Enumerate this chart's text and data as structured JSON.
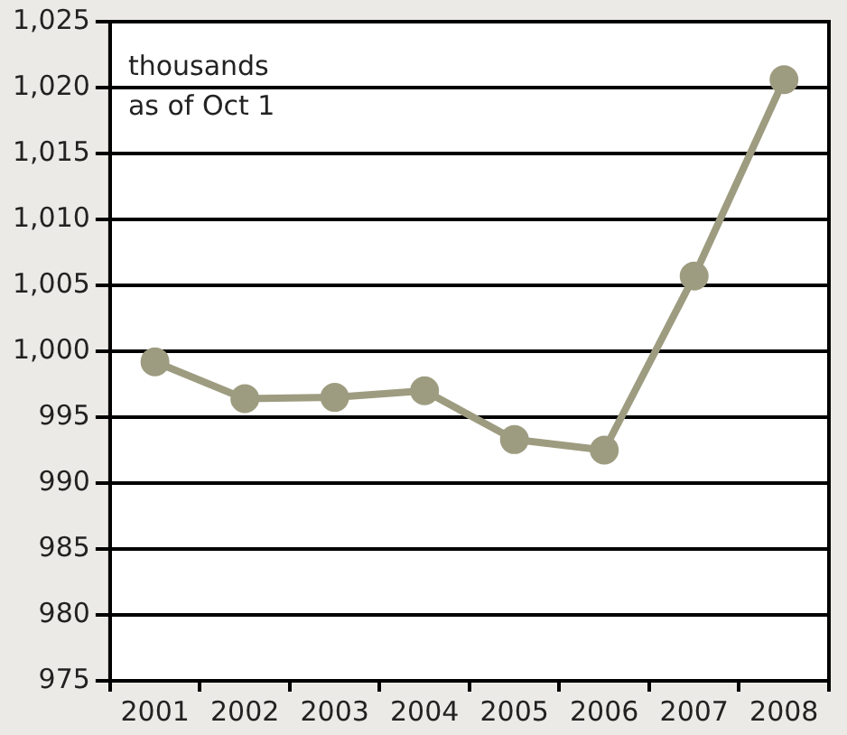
{
  "chart_data": {
    "type": "line",
    "categories": [
      "2001",
      "2002",
      "2003",
      "2004",
      "2005",
      "2006",
      "2007",
      "2008"
    ],
    "series": [
      {
        "color": "#9e9c80",
        "values": [
          999.2,
          996.4,
          996.5,
          997.0,
          993.3,
          992.5,
          1005.7,
          1020.6
        ]
      }
    ],
    "ylim": [
      975,
      1025
    ],
    "yticks": [
      975,
      980,
      985,
      990,
      995,
      {
        "value": 1000,
        "label": "1,000"
      },
      {
        "value": 1005,
        "label": "1,005"
      },
      {
        "value": 1010,
        "label": "1,010"
      },
      {
        "value": 1015,
        "label": "1,015"
      },
      {
        "value": 1020,
        "label": "1,020"
      },
      {
        "value": 1025,
        "label": "1,025"
      }
    ],
    "grid": "y",
    "legend": false,
    "marker": "circle",
    "line_style": "solid",
    "annotations": [
      "thousands\nas of Oct 1"
    ]
  }
}
